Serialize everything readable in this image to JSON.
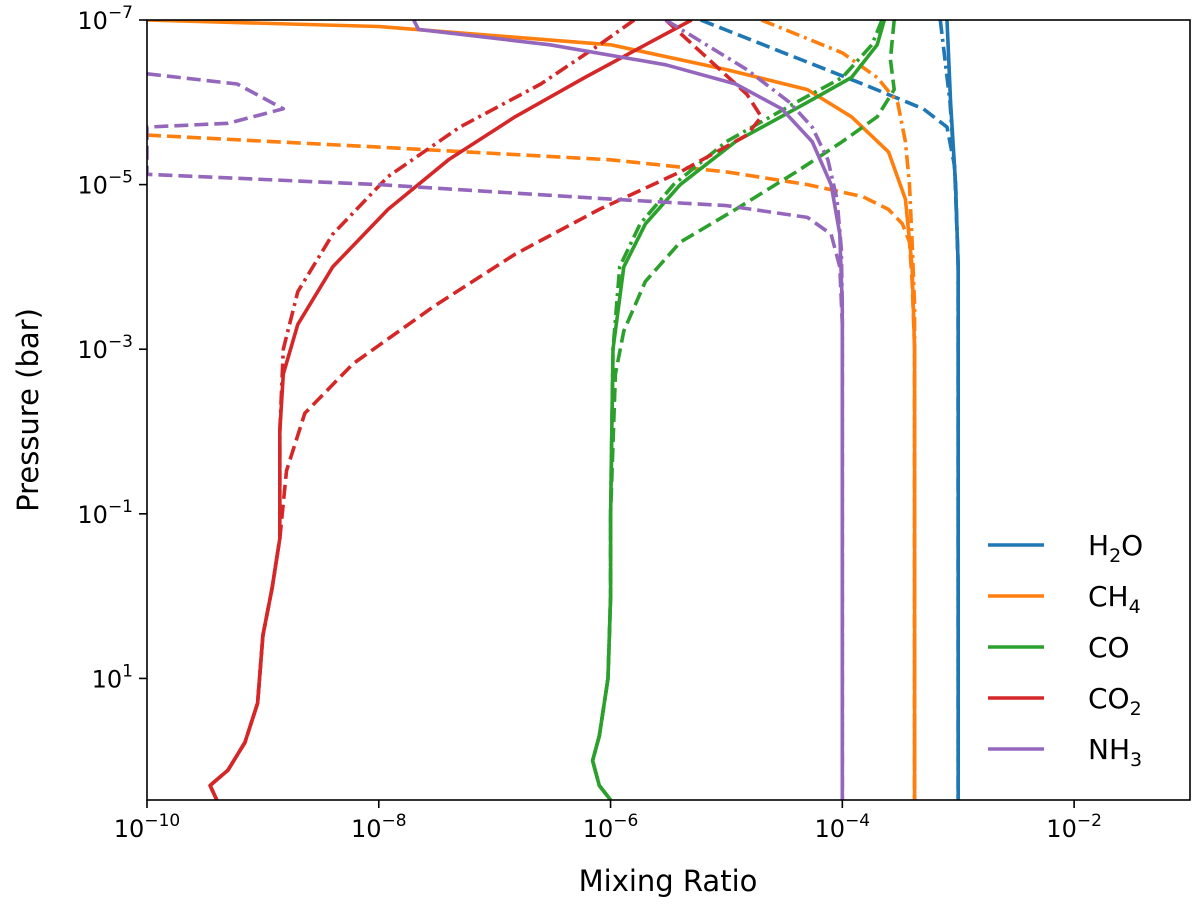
{
  "chart_data": {
    "type": "line",
    "title": "",
    "xlabel": "Mixing Ratio",
    "ylabel": "Pressure (bar)",
    "xscale": "log",
    "yscale": "log",
    "y_inverted": true,
    "xlim": [
      1e-10,
      0.1
    ],
    "ylim": [
      300,
      1e-07
    ],
    "x_ticks": [
      {
        "value": 1e-10,
        "base": "10",
        "exp": "−10"
      },
      {
        "value": 1e-08,
        "base": "10",
        "exp": "−8"
      },
      {
        "value": 1e-06,
        "base": "10",
        "exp": "−6"
      },
      {
        "value": 0.0001,
        "base": "10",
        "exp": "−4"
      },
      {
        "value": 0.01,
        "base": "10",
        "exp": "−2"
      }
    ],
    "y_ticks": [
      {
        "value": 1e-07,
        "base": "10",
        "exp": "−7"
      },
      {
        "value": 1e-05,
        "base": "10",
        "exp": "−5"
      },
      {
        "value": 0.001,
        "base": "10",
        "exp": "−3"
      },
      {
        "value": 0.1,
        "base": "10",
        "exp": "−1"
      },
      {
        "value": 10,
        "base": "10",
        "exp": "1"
      }
    ],
    "line_styles": [
      "solid",
      "dashed",
      "dashdot"
    ],
    "legend": {
      "location": "lower-right",
      "entries": [
        {
          "base": "H",
          "sub": "2",
          "rest": "O",
          "color": "#1f77b4"
        },
        {
          "base": "CH",
          "sub": "4",
          "rest": "",
          "color": "#ff7f0e"
        },
        {
          "base": "CO",
          "sub": "",
          "rest": "",
          "color": "#2ca02c"
        },
        {
          "base": "CO",
          "sub": "2",
          "rest": "",
          "color": "#d62728"
        },
        {
          "base": "NH",
          "sub": "3",
          "rest": "",
          "color": "#9467bd"
        }
      ]
    },
    "series": [
      {
        "name": "H2O solid",
        "species": "H2O",
        "color": "#1f77b4",
        "style": "solid",
        "points": [
          [
            0.0008,
            1e-07
          ],
          [
            0.00086,
            1e-06
          ],
          [
            0.00095,
            1e-05
          ],
          [
            0.001,
            0.0001
          ],
          [
            0.001,
            300
          ]
        ]
      },
      {
        "name": "H2O dashed",
        "species": "H2O",
        "color": "#1f77b4",
        "style": "dashed",
        "points": [
          [
            6e-06,
            1e-07
          ],
          [
            0.00015,
            6e-07
          ],
          [
            0.0005,
            1.2e-06
          ],
          [
            0.0008,
            2e-06
          ],
          [
            0.00093,
            6e-06
          ],
          [
            0.001,
            0.0001
          ],
          [
            0.001,
            300
          ]
        ]
      },
      {
        "name": "H2O dashdot",
        "species": "H2O",
        "color": "#1f77b4",
        "style": "dashdot",
        "points": [
          [
            0.0007,
            1e-07
          ],
          [
            0.00085,
            1e-06
          ],
          [
            0.00095,
            1e-05
          ],
          [
            0.001,
            0.0001
          ],
          [
            0.001,
            300
          ]
        ]
      },
      {
        "name": "CH4 solid",
        "species": "CH4",
        "color": "#ff7f0e",
        "style": "solid",
        "points": [
          [
            1e-10,
            1e-07
          ],
          [
            1e-08,
            1.2e-07
          ],
          [
            1e-06,
            2e-07
          ],
          [
            1e-05,
            4e-07
          ],
          [
            5e-05,
            7e-07
          ],
          [
            0.00012,
            1.5e-06
          ],
          [
            0.00025,
            4e-06
          ],
          [
            0.00035,
            1.5e-05
          ],
          [
            0.0004,
            0.0001
          ],
          [
            0.00042,
            0.001
          ],
          [
            0.00042,
            300
          ]
        ]
      },
      {
        "name": "CH4 dashed",
        "species": "CH4",
        "color": "#ff7f0e",
        "style": "dashed",
        "points": [
          [
            1e-10,
            2.5e-06
          ],
          [
            1e-08,
            3.5e-06
          ],
          [
            1e-06,
            5e-06
          ],
          [
            1e-05,
            7e-06
          ],
          [
            5e-05,
            1e-05
          ],
          [
            0.00015,
            1.4e-05
          ],
          [
            0.00025,
            2e-05
          ],
          [
            0.00033,
            3e-05
          ],
          [
            0.00038,
            5e-05
          ],
          [
            0.0004,
            0.00015
          ],
          [
            0.00042,
            0.001
          ],
          [
            0.00042,
            300
          ]
        ]
      },
      {
        "name": "CH4 dashdot",
        "species": "CH4",
        "color": "#ff7f0e",
        "style": "dashdot",
        "points": [
          [
            2e-05,
            1e-07
          ],
          [
            0.0001,
            2.5e-07
          ],
          [
            0.0002,
            5e-07
          ],
          [
            0.0003,
            1e-06
          ],
          [
            0.00035,
            3e-06
          ],
          [
            0.00038,
            1e-05
          ],
          [
            0.0004,
            5e-05
          ],
          [
            0.00042,
            0.0003
          ],
          [
            0.00042,
            300
          ]
        ]
      },
      {
        "name": "CO solid",
        "species": "CO",
        "color": "#2ca02c",
        "style": "solid",
        "points": [
          [
            0.00023,
            1e-07
          ],
          [
            0.0002,
            2e-07
          ],
          [
            0.00012,
            5e-07
          ],
          [
            5e-05,
            1e-06
          ],
          [
            1.2e-05,
            3e-06
          ],
          [
            4e-06,
            1e-05
          ],
          [
            2e-06,
            3e-05
          ],
          [
            1.3e-06,
            0.0001
          ],
          [
            1.05e-06,
            0.001
          ],
          [
            1e-06,
            0.1
          ],
          [
            1e-06,
            1
          ],
          [
            9.5e-07,
            10
          ],
          [
            8e-07,
            50
          ],
          [
            7e-07,
            100
          ],
          [
            8e-07,
            200
          ],
          [
            1e-06,
            300
          ]
        ]
      },
      {
        "name": "CO dashed",
        "species": "CO",
        "color": "#2ca02c",
        "style": "dashed",
        "points": [
          [
            0.00028,
            1e-07
          ],
          [
            0.00026,
            3e-07
          ],
          [
            0.00028,
            7e-07
          ],
          [
            0.0002,
            1.5e-06
          ],
          [
            0.0001,
            3e-06
          ],
          [
            4e-05,
            7e-06
          ],
          [
            1.2e-05,
            2e-05
          ],
          [
            4e-06,
            5e-05
          ],
          [
            2e-06,
            0.00015
          ],
          [
            1.3e-06,
            0.0006
          ],
          [
            1.1e-06,
            0.002
          ],
          [
            1e-06,
            0.1
          ],
          [
            1e-06,
            1
          ],
          [
            9.5e-07,
            10
          ],
          [
            8e-07,
            50
          ],
          [
            7e-07,
            100
          ],
          [
            8e-07,
            200
          ],
          [
            1e-06,
            300
          ]
        ]
      },
      {
        "name": "CO dashdot",
        "species": "CO",
        "color": "#2ca02c",
        "style": "dashdot",
        "points": [
          [
            0.00022,
            1e-07
          ],
          [
            0.00018,
            2e-07
          ],
          [
            0.0001,
            5e-07
          ],
          [
            4e-05,
            1e-06
          ],
          [
            1e-05,
            3e-06
          ],
          [
            3.5e-06,
            1e-05
          ],
          [
            1.8e-06,
            3e-05
          ],
          [
            1.2e-06,
            0.0001
          ],
          [
            1.05e-06,
            0.001
          ],
          [
            1e-06,
            0.1
          ],
          [
            1e-06,
            1
          ],
          [
            9.5e-07,
            10
          ],
          [
            8e-07,
            50
          ],
          [
            7e-07,
            100
          ],
          [
            8e-07,
            200
          ],
          [
            1e-06,
            300
          ]
        ]
      },
      {
        "name": "CO2 solid",
        "species": "CO2",
        "color": "#d62728",
        "style": "solid",
        "points": [
          [
            5e-06,
            1e-07
          ],
          [
            2e-06,
            2e-07
          ],
          [
            6e-07,
            5e-07
          ],
          [
            1.5e-07,
            1.5e-06
          ],
          [
            4e-08,
            5e-06
          ],
          [
            1.2e-08,
            2e-05
          ],
          [
            4e-09,
            0.0001
          ],
          [
            2e-09,
            0.0005
          ],
          [
            1.5e-09,
            0.002
          ],
          [
            1.4e-09,
            0.01
          ],
          [
            1.4e-09,
            0.2
          ],
          [
            1.2e-09,
            0.8
          ],
          [
            1e-09,
            3
          ],
          [
            9e-10,
            20
          ],
          [
            7e-10,
            60
          ],
          [
            5e-10,
            130
          ],
          [
            3.5e-10,
            200
          ],
          [
            4e-10,
            300
          ]
        ]
      },
      {
        "name": "CO2 dashed",
        "species": "CO2",
        "color": "#d62728",
        "style": "dashed",
        "points": [
          [
            3e-06,
            1e-07
          ],
          [
            1.5e-05,
            8e-07
          ],
          [
            2e-05,
            1.5e-06
          ],
          [
            1.5e-05,
            2.5e-06
          ],
          [
            4e-06,
            7e-06
          ],
          [
            8e-07,
            2e-05
          ],
          [
            1.5e-07,
            7e-05
          ],
          [
            3e-08,
            0.0003
          ],
          [
            6e-09,
            0.0015
          ],
          [
            2.3e-09,
            0.006
          ],
          [
            1.6e-09,
            0.03
          ],
          [
            1.4e-09,
            0.2
          ],
          [
            1.2e-09,
            0.8
          ],
          [
            1e-09,
            3
          ],
          [
            9e-10,
            20
          ],
          [
            7e-10,
            60
          ],
          [
            5e-10,
            130
          ],
          [
            3.5e-10,
            200
          ],
          [
            4e-10,
            300
          ]
        ]
      },
      {
        "name": "CO2 dashdot",
        "species": "CO2",
        "color": "#d62728",
        "style": "dashdot",
        "points": [
          [
            1.6e-06,
            1e-07
          ],
          [
            8e-07,
            2e-07
          ],
          [
            2.5e-07,
            6e-07
          ],
          [
            5e-08,
            2e-06
          ],
          [
            1.2e-08,
            8e-06
          ],
          [
            4e-09,
            4e-05
          ],
          [
            2e-09,
            0.0002
          ],
          [
            1.5e-09,
            0.001
          ],
          [
            1.4e-09,
            0.01
          ],
          [
            1.4e-09,
            0.2
          ],
          [
            1.2e-09,
            0.8
          ],
          [
            1e-09,
            3
          ],
          [
            9e-10,
            20
          ],
          [
            7e-10,
            60
          ],
          [
            5e-10,
            130
          ],
          [
            3.5e-10,
            200
          ],
          [
            4e-10,
            300
          ]
        ]
      },
      {
        "name": "NH3 solid",
        "species": "NH3",
        "color": "#9467bd",
        "style": "solid",
        "points": [
          [
            2e-08,
            1e-07
          ],
          [
            2.2e-08,
            1.3e-07
          ],
          [
            3e-07,
            2e-07
          ],
          [
            3e-06,
            3.5e-07
          ],
          [
            1.2e-05,
            6e-07
          ],
          [
            3e-05,
            1.2e-06
          ],
          [
            5.5e-05,
            3e-06
          ],
          [
            8e-05,
            1e-05
          ],
          [
            9.5e-05,
            4e-05
          ],
          [
            0.0001,
            0.0003
          ],
          [
            0.0001,
            300
          ]
        ]
      },
      {
        "name": "NH3 dashed",
        "species": "NH3",
        "color": "#9467bd",
        "style": "dashed",
        "points": [
          [
            1e-10,
            4.5e-07
          ],
          [
            6e-10,
            6e-07
          ],
          [
            1.5e-09,
            1.2e-06
          ],
          [
            5e-10,
            1.8e-06
          ],
          [
            1e-10,
            2e-06
          ],
          [
            1e-10,
            7.5e-06
          ],
          [
            1e-08,
            1e-05
          ],
          [
            1e-06,
            1.5e-05
          ],
          [
            1e-05,
            1.8e-05
          ],
          [
            5e-05,
            2.5e-05
          ],
          [
            8e-05,
            4e-05
          ],
          [
            9.5e-05,
            0.0001
          ],
          [
            0.0001,
            0.0005
          ],
          [
            0.0001,
            300
          ]
        ]
      },
      {
        "name": "NH3 dashdot",
        "species": "NH3",
        "color": "#9467bd",
        "style": "dashdot",
        "points": [
          [
            3e-06,
            1e-07
          ],
          [
            1.5e-05,
            4e-07
          ],
          [
            3.5e-05,
            1e-06
          ],
          [
            5.5e-05,
            2e-06
          ],
          [
            7.5e-05,
            5e-06
          ],
          [
            9e-05,
            1.5e-05
          ],
          [
            9.8e-05,
            6e-05
          ],
          [
            0.0001,
            0.0003
          ],
          [
            0.0001,
            300
          ]
        ]
      }
    ]
  }
}
